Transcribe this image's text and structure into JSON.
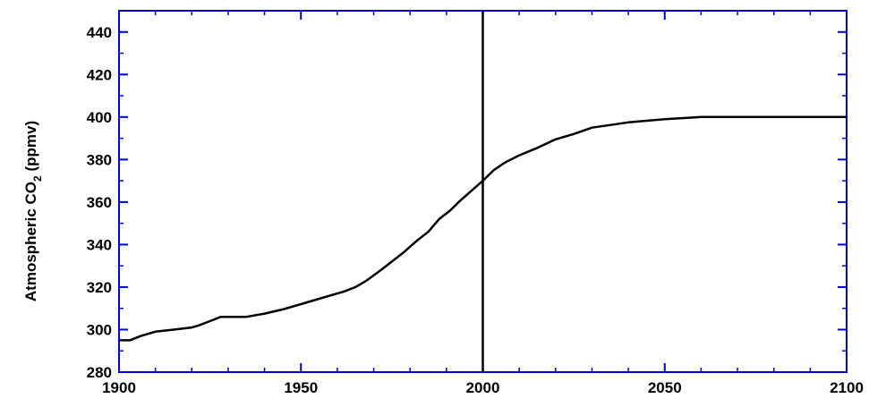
{
  "chart_data": {
    "type": "line",
    "title": "",
    "xlabel": "",
    "ylabel_main": "Atmospheric CO",
    "ylabel_sub": "2",
    "ylabel_unit": " (ppmv)",
    "xlim": [
      1900,
      2100
    ],
    "ylim": [
      280,
      450
    ],
    "xticks": [
      1900,
      1950,
      2000,
      2050,
      2100
    ],
    "yticks": [
      280,
      300,
      320,
      340,
      360,
      380,
      400,
      420,
      440
    ],
    "grid": false,
    "frame_color": "#0000cc",
    "line_color": "#000000",
    "marker_x": 2000,
    "series": [
      {
        "x": [
          1900,
          1903,
          1906,
          1910,
          1915,
          1920,
          1922,
          1925,
          1928,
          1935,
          1940,
          1945,
          1950,
          1955,
          1960,
          1962,
          1965,
          1968,
          1972,
          1975,
          1978,
          1982,
          1985,
          1988,
          1991,
          1994,
          1997,
          2000,
          2003,
          2006,
          2010,
          2015,
          2020,
          2025,
          2030,
          2040,
          2050,
          2060,
          2070,
          2080,
          2090,
          2100
        ],
        "y": [
          295,
          295,
          297,
          299,
          300,
          301,
          302,
          304,
          306,
          306,
          307.5,
          309.5,
          312,
          314.5,
          317,
          318,
          320,
          323,
          328,
          332,
          336,
          342,
          346,
          352,
          356,
          361,
          365.5,
          370,
          375,
          378.5,
          382,
          385.5,
          389.5,
          392,
          395,
          397.5,
          399,
          400,
          400,
          400,
          400,
          400
        ]
      }
    ]
  }
}
